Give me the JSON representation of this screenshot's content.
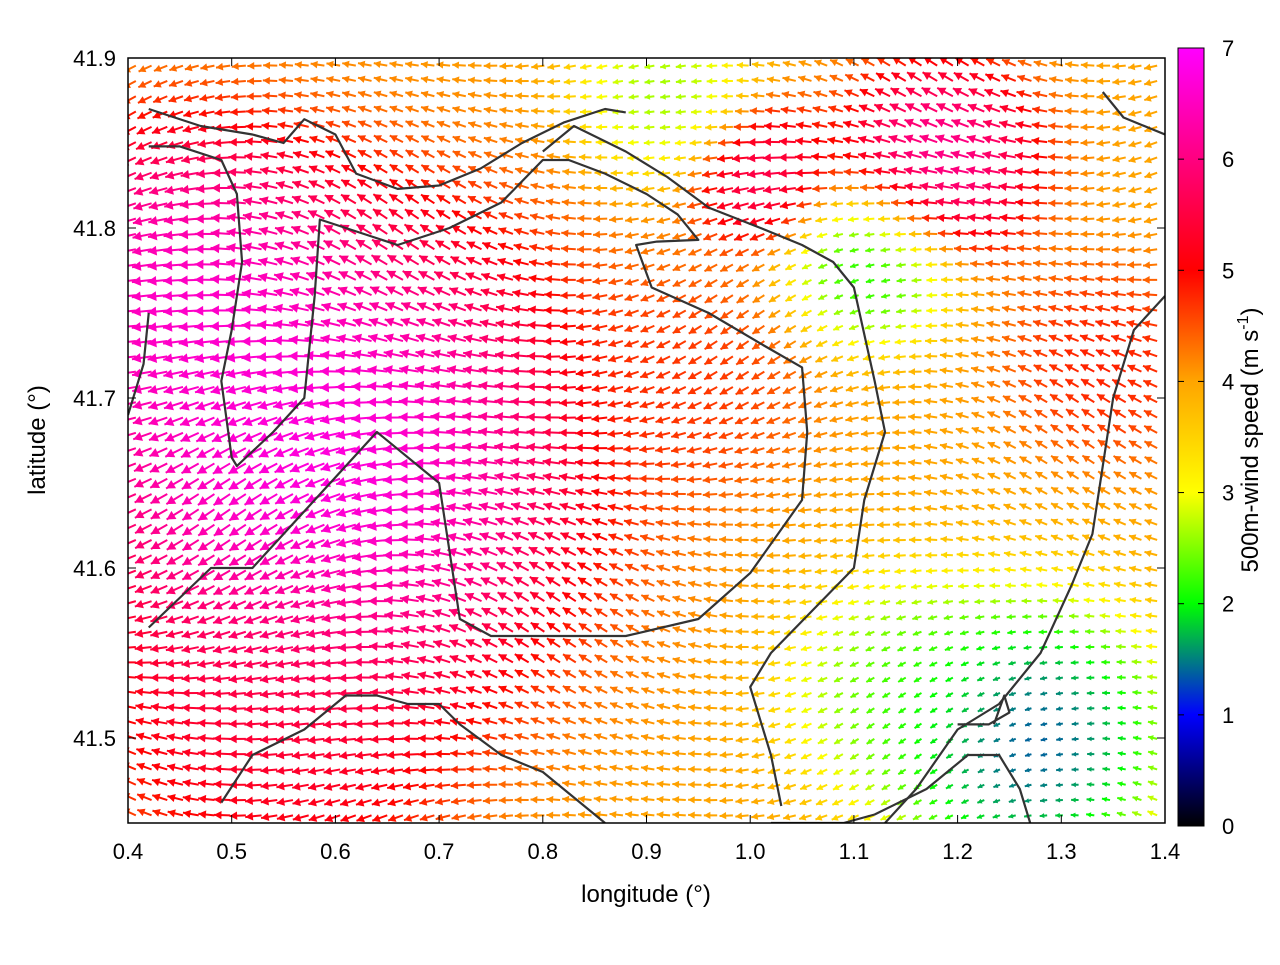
{
  "chart_data": {
    "type": "vector-field",
    "xlabel": "longitude (°)",
    "ylabel": "latitude (°)",
    "xlim": [
      0.4,
      1.4
    ],
    "ylim": [
      41.45,
      41.9
    ],
    "x_ticks": [
      "0.4",
      "0.5",
      "0.6",
      "0.7",
      "0.8",
      "0.9",
      "1.0",
      "1.1",
      "1.2",
      "1.3",
      "1.4"
    ],
    "x_tick_values": [
      0.4,
      0.5,
      0.6,
      0.7,
      0.8,
      0.9,
      1.0,
      1.1,
      1.2,
      1.3,
      1.4
    ],
    "y_ticks": [
      "41.5",
      "41.6",
      "41.7",
      "41.8",
      "41.9"
    ],
    "y_tick_values": [
      41.5,
      41.6,
      41.7,
      41.8,
      41.9
    ],
    "colorbar": {
      "label": "500m-wind speed (m s",
      "label_superscript": "-1",
      "label_suffix": ")",
      "range": [
        0,
        7
      ],
      "ticks": [
        "0",
        "1",
        "2",
        "3",
        "4",
        "5",
        "6",
        "7"
      ],
      "tick_values": [
        0,
        1,
        2,
        3,
        4,
        5,
        6,
        7
      ],
      "colormap": [
        "#000000",
        "#0000ff",
        "#00ff00",
        "#ffff00",
        "#ffa500",
        "#ff0000",
        "#ff00ff"
      ]
    },
    "grid": false,
    "coastline_color": "#333333",
    "coastlines": [
      [
        [
          0.42,
          41.87
        ],
        [
          0.47,
          41.86
        ],
        [
          0.52,
          41.855
        ],
        [
          0.55,
          41.85
        ],
        [
          0.57,
          41.864
        ],
        [
          0.6,
          41.855
        ],
        [
          0.62,
          41.832
        ],
        [
          0.66,
          41.823
        ],
        [
          0.7,
          41.825
        ],
        [
          0.74,
          41.835
        ],
        [
          0.78,
          41.85
        ],
        [
          0.82,
          41.862
        ],
        [
          0.86,
          41.87
        ],
        [
          0.88,
          41.868
        ]
      ],
      [
        [
          0.42,
          41.848
        ],
        [
          0.45,
          41.848
        ],
        [
          0.49,
          41.84
        ],
        [
          0.505,
          41.82
        ],
        [
          0.51,
          41.78
        ],
        [
          0.5,
          41.74
        ],
        [
          0.49,
          41.71
        ],
        [
          0.5,
          41.665
        ],
        [
          0.505,
          41.66
        ],
        [
          0.54,
          41.68
        ],
        [
          0.57,
          41.7
        ],
        [
          0.58,
          41.76
        ],
        [
          0.585,
          41.805
        ],
        [
          0.61,
          41.8
        ],
        [
          0.66,
          41.79
        ],
        [
          0.71,
          41.8
        ],
        [
          0.76,
          41.815
        ],
        [
          0.8,
          41.84
        ],
        [
          0.825,
          41.84
        ],
        [
          0.86,
          41.832
        ],
        [
          0.9,
          41.82
        ],
        [
          0.93,
          41.808
        ],
        [
          0.95,
          41.793
        ],
        [
          0.91,
          41.792
        ],
        [
          0.89,
          41.79
        ],
        [
          0.905,
          41.765
        ],
        [
          0.96,
          41.75
        ],
        [
          1.01,
          41.732
        ],
        [
          1.05,
          41.718
        ],
        [
          1.055,
          41.68
        ],
        [
          1.05,
          41.64
        ],
        [
          1.0,
          41.597
        ],
        [
          0.95,
          41.57
        ],
        [
          0.88,
          41.56
        ],
        [
          0.82,
          41.56
        ],
        [
          0.75,
          41.56
        ],
        [
          0.72,
          41.57
        ],
        [
          0.7,
          41.65
        ],
        [
          0.64,
          41.68
        ],
        [
          0.58,
          41.64
        ],
        [
          0.55,
          41.62
        ],
        [
          0.52,
          41.6
        ],
        [
          0.48,
          41.6
        ],
        [
          0.42,
          41.565
        ]
      ],
      [
        [
          0.8,
          41.845
        ],
        [
          0.83,
          41.86
        ],
        [
          0.88,
          41.845
        ],
        [
          0.92,
          41.83
        ],
        [
          0.96,
          41.812
        ],
        [
          1.01,
          41.8
        ],
        [
          1.05,
          41.79
        ],
        [
          1.08,
          41.78
        ],
        [
          1.1,
          41.765
        ],
        [
          1.12,
          41.71
        ],
        [
          1.13,
          41.68
        ],
        [
          1.11,
          41.64
        ],
        [
          1.1,
          41.6
        ],
        [
          1.06,
          41.575
        ],
        [
          1.02,
          41.55
        ],
        [
          1.0,
          41.53
        ],
        [
          1.02,
          41.49
        ],
        [
          1.03,
          41.46
        ]
      ],
      [
        [
          1.13,
          41.45
        ],
        [
          1.16,
          41.47
        ],
        [
          1.2,
          41.505
        ],
        [
          1.24,
          41.52
        ],
        [
          1.28,
          41.55
        ],
        [
          1.31,
          41.59
        ],
        [
          1.33,
          41.62
        ],
        [
          1.34,
          41.66
        ],
        [
          1.35,
          41.7
        ],
        [
          1.37,
          41.74
        ],
        [
          1.4,
          41.76
        ]
      ],
      [
        [
          1.34,
          41.88
        ],
        [
          1.36,
          41.865
        ],
        [
          1.4,
          41.855
        ]
      ],
      [
        [
          1.2,
          41.508
        ],
        [
          1.23,
          41.508
        ],
        [
          1.25,
          41.515
        ],
        [
          1.245,
          41.525
        ],
        [
          1.235,
          41.508
        ]
      ],
      [
        [
          0.49,
          41.462
        ],
        [
          0.52,
          41.49
        ],
        [
          0.57,
          41.505
        ],
        [
          0.6,
          41.52
        ],
        [
          0.61,
          41.525
        ],
        [
          0.64,
          41.525
        ],
        [
          0.67,
          41.52
        ],
        [
          0.7,
          41.52
        ],
        [
          0.72,
          41.508
        ],
        [
          0.76,
          41.49
        ],
        [
          0.8,
          41.48
        ],
        [
          0.84,
          41.46
        ],
        [
          0.86,
          41.45
        ]
      ],
      [
        [
          1.02,
          41.45
        ],
        [
          1.05,
          41.45
        ],
        [
          1.09,
          41.45
        ],
        [
          1.12,
          41.455
        ],
        [
          1.17,
          41.47
        ],
        [
          1.21,
          41.49
        ],
        [
          1.24,
          41.49
        ],
        [
          1.26,
          41.47
        ],
        [
          1.27,
          41.45
        ]
      ],
      [
        [
          0.4,
          41.69
        ],
        [
          0.415,
          41.72
        ],
        [
          0.42,
          41.75
        ]
      ]
    ],
    "wind_field": {
      "grid_nx": 66,
      "grid_ny": 50,
      "speed_centers": [
        {
          "lon": 0.6,
          "lat": 41.66,
          "speed": 7.4,
          "radius": 0.18
        },
        {
          "lon": 0.45,
          "lat": 41.76,
          "speed": 7.0,
          "radius": 0.12
        },
        {
          "lon": 1.19,
          "lat": 41.84,
          "speed": 6.6,
          "radius": 0.07
        },
        {
          "lon": 1.02,
          "lat": 41.83,
          "speed": 6.0,
          "radius": 0.05
        },
        {
          "lon": 1.12,
          "lat": 41.78,
          "speed": 1.6,
          "radius": 0.06
        },
        {
          "lon": 1.27,
          "lat": 41.5,
          "speed": 0.7,
          "radius": 0.1
        },
        {
          "lon": 1.15,
          "lat": 41.53,
          "speed": 2.0,
          "radius": 0.08
        },
        {
          "lon": 0.92,
          "lat": 41.88,
          "speed": 2.3,
          "radius": 0.06
        },
        {
          "lon": 0.55,
          "lat": 41.51,
          "speed": 5.6,
          "radius": 0.12
        },
        {
          "lon": 0.95,
          "lat": 41.71,
          "speed": 4.8,
          "radius": 0.08
        },
        {
          "lon": 1.35,
          "lat": 41.72,
          "speed": 5.0,
          "radius": 0.07
        }
      ],
      "background_speed": 4.0,
      "mean_direction_deg": 180
    }
  }
}
